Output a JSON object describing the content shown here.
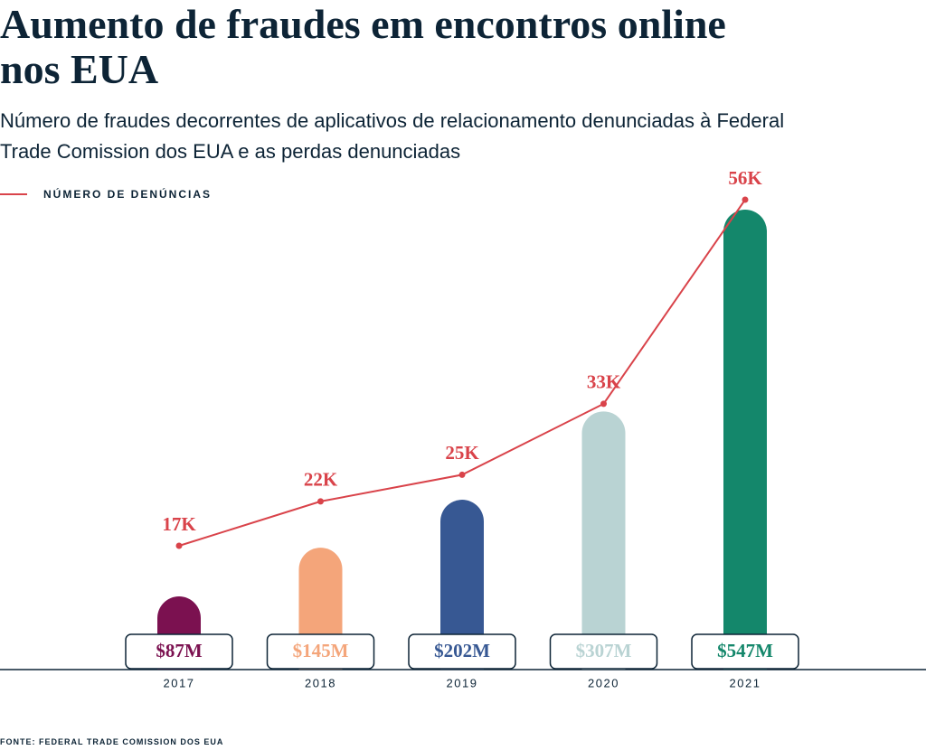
{
  "chart_data": {
    "type": "bar",
    "title": "Aumento de fraudes em encontros online nos EUA",
    "subtitle": "Número de fraudes decorrentes de aplicativos de relacionamento denunciadas à Federal Trade Comission dos EUA e as perdas denunciadas",
    "source": "FONTE: FEDERAL TRADE COMISSION DOS EUA",
    "categories": [
      "2017",
      "2018",
      "2019",
      "2020",
      "2021"
    ],
    "series": [
      {
        "type": "bar",
        "colors": [
          "#7b1150",
          "#f4a57a",
          "#375893",
          "#b9d3d3",
          "#14876b"
        ],
        "values": [
          87,
          145,
          202,
          307,
          547
        ],
        "value_labels": [
          "$87M",
          "$145M",
          "$202M",
          "$307M",
          "$547M"
        ]
      },
      {
        "type": "line",
        "name": "NÚMERO DE DENÚNCIAS",
        "color": "#d9434a",
        "values": [
          17,
          22,
          25,
          33,
          56
        ],
        "value_labels": [
          "17K",
          "22K",
          "25K",
          "33K",
          "56K"
        ]
      }
    ]
  }
}
